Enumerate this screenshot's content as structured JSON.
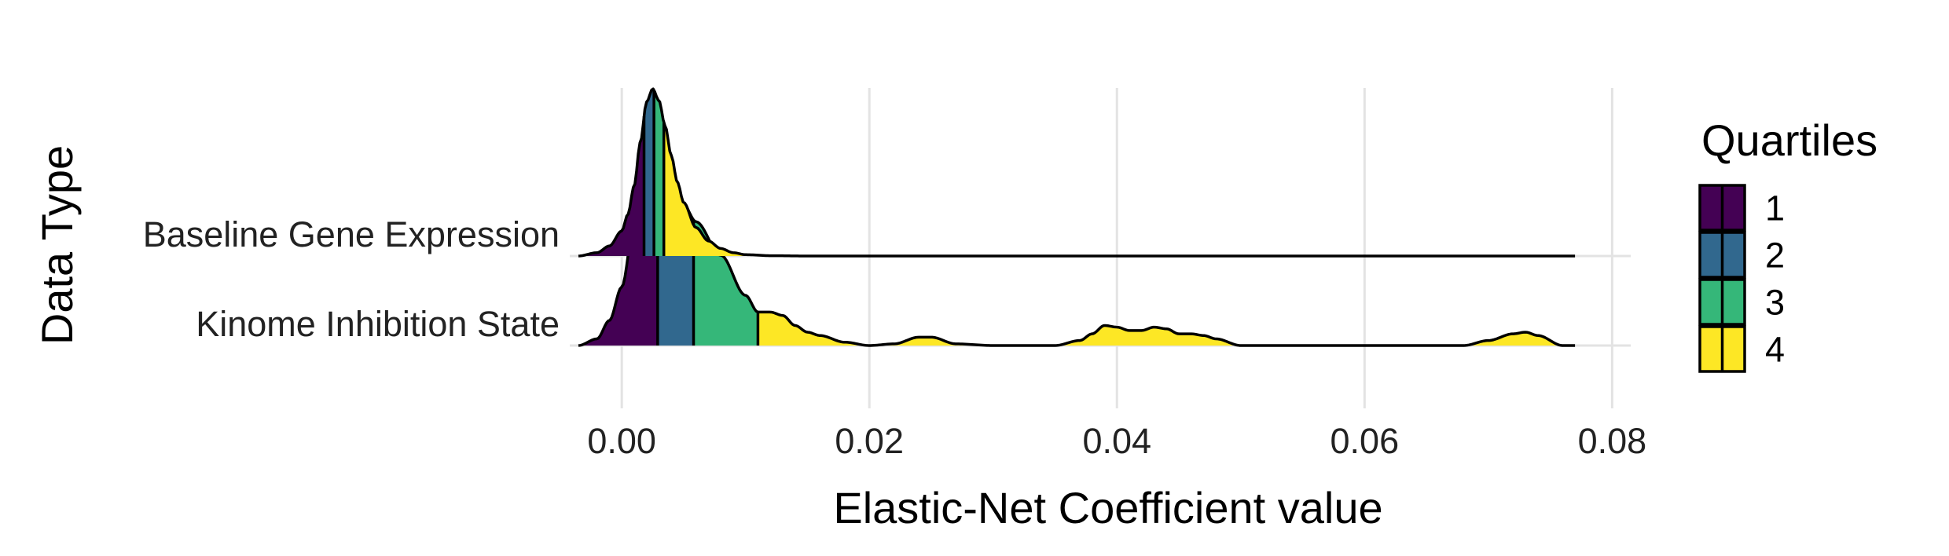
{
  "chart_data": {
    "type": "ridgeline",
    "xlabel": "Elastic-Net Coefficient value",
    "ylabel": "Data Type",
    "xlim": [
      -0.0042,
      0.0815
    ],
    "x_ticks": [
      0.0,
      0.02,
      0.04,
      0.06,
      0.08
    ],
    "x_tick_labels": [
      "0.00",
      "0.02",
      "0.04",
      "0.06",
      "0.08"
    ],
    "grid": "vertical major gridlines",
    "legend": {
      "title": "Quartiles",
      "position": "right",
      "entries": [
        {
          "label": "1",
          "color": "#440154"
        },
        {
          "label": "2",
          "color": "#31688E"
        },
        {
          "label": "3",
          "color": "#35B779"
        },
        {
          "label": "4",
          "color": "#FDE725"
        }
      ]
    },
    "series": [
      {
        "name": "Baseline Gene Expression",
        "quartile_cuts": [
          0.0018,
          0.0026,
          0.0034
        ],
        "x": [
          -0.0035,
          -0.002,
          -0.001,
          0.0,
          0.0005,
          0.001,
          0.0015,
          0.002,
          0.0025,
          0.003,
          0.0035,
          0.004,
          0.0045,
          0.005,
          0.006,
          0.007,
          0.008,
          0.009,
          0.01,
          0.012,
          0.015,
          0.02,
          0.04,
          0.06,
          0.077
        ],
        "density": [
          0.0,
          0.02,
          0.06,
          0.15,
          0.25,
          0.42,
          0.68,
          0.92,
          1.0,
          0.93,
          0.78,
          0.6,
          0.44,
          0.32,
          0.17,
          0.09,
          0.045,
          0.02,
          0.008,
          0.002,
          0.0,
          0.0,
          0.0,
          0.0,
          0.0
        ]
      },
      {
        "name": "Kinome Inhibition State",
        "quartile_cuts": [
          0.0029,
          0.0058,
          0.011
        ],
        "x": [
          -0.0035,
          -0.002,
          -0.001,
          0.0,
          0.001,
          0.0015,
          0.002,
          0.0025,
          0.003,
          0.004,
          0.005,
          0.006,
          0.008,
          0.01,
          0.011,
          0.012,
          0.013,
          0.014,
          0.015,
          0.016,
          0.018,
          0.02,
          0.022,
          0.024,
          0.025,
          0.027,
          0.03,
          0.035,
          0.037,
          0.038,
          0.039,
          0.04,
          0.041,
          0.042,
          0.043,
          0.044,
          0.045,
          0.046,
          0.047,
          0.048,
          0.05,
          0.052,
          0.06,
          0.068,
          0.07,
          0.072,
          0.073,
          0.074,
          0.076,
          0.077
        ],
        "density": [
          0.0,
          0.04,
          0.15,
          0.35,
          0.72,
          0.88,
          0.97,
          1.0,
          0.98,
          0.92,
          0.84,
          0.74,
          0.54,
          0.3,
          0.2,
          0.2,
          0.18,
          0.12,
          0.08,
          0.06,
          0.02,
          0.0,
          0.01,
          0.05,
          0.05,
          0.01,
          0.0,
          0.0,
          0.03,
          0.07,
          0.12,
          0.11,
          0.09,
          0.09,
          0.11,
          0.1,
          0.07,
          0.07,
          0.06,
          0.04,
          0.0,
          0.0,
          0.0,
          0.0,
          0.03,
          0.07,
          0.08,
          0.06,
          0.0,
          0.0
        ]
      }
    ]
  }
}
